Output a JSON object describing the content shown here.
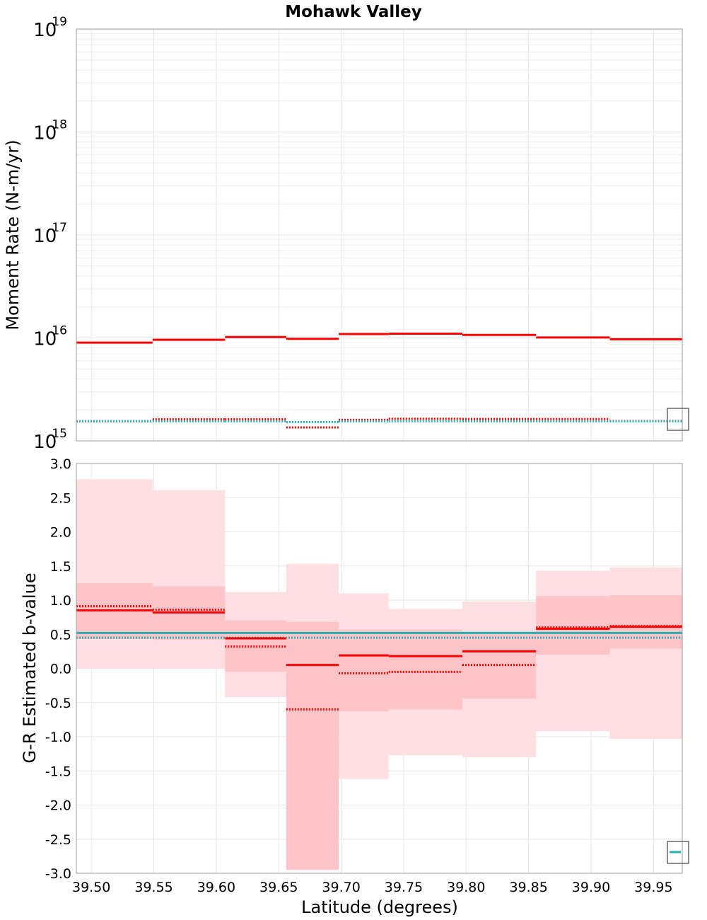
{
  "title": "Mohawk Valley",
  "colors": {
    "red": "#ff0000",
    "teal": "#2ab0b0",
    "band_outer": "#ffdfe1",
    "band_inner": "#ffc4c8",
    "grid": "#e6e6e6",
    "frame": "#9e9e9e"
  },
  "chart_data": [
    {
      "type": "line",
      "title": "Mohawk Valley",
      "xlabel": "Latitude (degrees)",
      "ylabel": "Moment Rate (N-m/yr)",
      "yscale": "log",
      "xlim": [
        39.488,
        39.973
      ],
      "ylim": [
        1000000000000000.0,
        1e+19
      ],
      "ytick_labels": [
        {
          "base": "10",
          "exp": "15",
          "value": 1000000000000000.0
        },
        {
          "base": "10",
          "exp": "16",
          "value": 1e+16
        },
        {
          "base": "10",
          "exp": "17",
          "value": 1e+17
        },
        {
          "base": "10",
          "exp": "18",
          "value": 1e+18
        },
        {
          "base": "10",
          "exp": "19",
          "value": 1e+19
        }
      ],
      "bin_edges": [
        39.488,
        39.549,
        39.607,
        39.656,
        39.698,
        39.738,
        39.797,
        39.856,
        39.915,
        39.973
      ],
      "series": [
        {
          "name": "Red solid",
          "style": "solid",
          "color": "#ff0000",
          "values": [
            9000000000000000.0,
            9600000000000000.0,
            1.02e+16,
            9800000000000000.0,
            1.09e+16,
            1.1e+16,
            1.07e+16,
            1.01e+16,
            9700000000000000.0
          ]
        },
        {
          "name": "Red dotted",
          "style": "dotted",
          "color": "#ff0000",
          "values": [
            1550000000000000.0,
            1620000000000000.0,
            1620000000000000.0,
            1350000000000000.0,
            1600000000000000.0,
            1640000000000000.0,
            1630000000000000.0,
            1630000000000000.0,
            1560000000000000.0
          ]
        },
        {
          "name": "Teal dotted",
          "style": "dotted",
          "color": "#2ab0b0",
          "values": [
            1550000000000000.0,
            1550000000000000.0,
            1550000000000000.0,
            1520000000000000.0,
            1550000000000000.0,
            1550000000000000.0,
            1550000000000000.0,
            1550000000000000.0,
            1550000000000000.0
          ]
        }
      ]
    },
    {
      "type": "line",
      "xlabel": "Latitude (degrees)",
      "ylabel": "G-R Estimated b-value",
      "xlim": [
        39.488,
        39.973
      ],
      "ylim": [
        -3.0,
        3.0
      ],
      "yticks": [
        "-3.0",
        "-2.5",
        "-2.0",
        "-1.5",
        "-1.0",
        "-0.5",
        "0.0",
        "0.5",
        "1.0",
        "1.5",
        "2.0",
        "2.5",
        "3.0"
      ],
      "xticks": [
        "39.50",
        "39.55",
        "39.60",
        "39.65",
        "39.70",
        "39.75",
        "39.80",
        "39.85",
        "39.90",
        "39.95"
      ],
      "bin_edges": [
        39.488,
        39.549,
        39.607,
        39.656,
        39.698,
        39.738,
        39.797,
        39.856,
        39.915,
        39.973
      ],
      "bands": {
        "outer_lower": [
          0.0,
          0.0,
          -0.42,
          -2.95,
          -1.62,
          -1.27,
          -1.3,
          -0.92,
          -1.03
        ],
        "outer_upper": [
          2.77,
          2.61,
          1.12,
          1.53,
          1.1,
          0.87,
          0.98,
          1.43,
          1.48
        ],
        "inner_lower": [
          0.43,
          0.42,
          -0.05,
          -2.95,
          -0.63,
          -0.6,
          -0.44,
          0.2,
          0.29
        ],
        "inner_upper": [
          1.25,
          1.2,
          0.7,
          0.68,
          0.57,
          0.57,
          0.54,
          1.06,
          1.07
        ]
      },
      "series": [
        {
          "name": "Red solid",
          "style": "solid",
          "color": "#ff0000",
          "values": [
            0.85,
            0.82,
            0.44,
            0.05,
            0.19,
            0.18,
            0.25,
            0.58,
            0.61
          ]
        },
        {
          "name": "Red dotted",
          "style": "dotted",
          "color": "#ff0000",
          "values": [
            0.91,
            0.86,
            0.32,
            -0.6,
            -0.07,
            -0.05,
            0.05,
            0.6,
            0.62
          ]
        },
        {
          "name": "Teal solid",
          "style": "solid",
          "color": "#2ab0b0",
          "values_const": 0.52
        },
        {
          "name": "Teal dotted",
          "style": "dotted",
          "color": "#2ab0b0",
          "values_const": 0.45
        }
      ]
    }
  ]
}
